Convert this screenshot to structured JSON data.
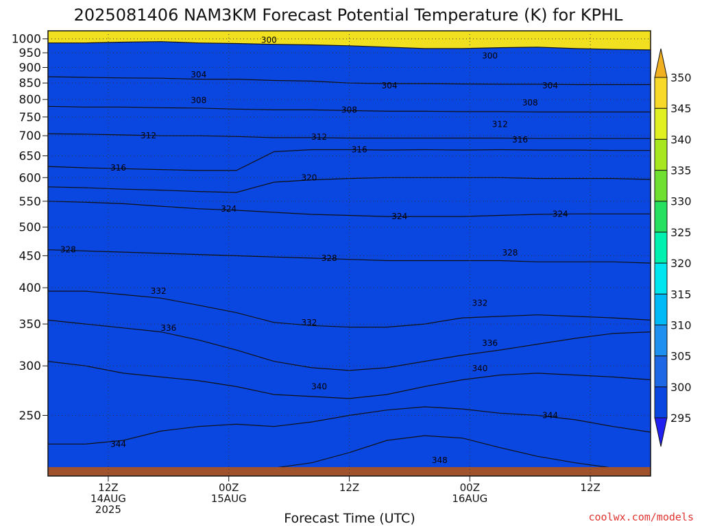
{
  "chart_data": {
    "type": "contour",
    "title": "2025081406 NAM3KM Forecast Potential Temperature (K) for KPHL",
    "xlabel": "Forecast Time (UTC)",
    "ylabel": "",
    "credit": "coolwx.com/models",
    "x_range_hours": [
      0,
      60
    ],
    "y_axis": {
      "scale": "log",
      "reversed": true,
      "range": [
        1030,
        200
      ],
      "ticks": [
        1000,
        950,
        900,
        850,
        800,
        750,
        700,
        650,
        600,
        550,
        500,
        450,
        400,
        350,
        300,
        250
      ],
      "tick_labels": [
        "1000",
        "950",
        "900",
        "850",
        "800",
        "750",
        "700",
        "650",
        "600",
        "550",
        "500",
        "450",
        "400",
        "350",
        "300",
        "250"
      ]
    },
    "x_ticks": [
      {
        "hour": 6,
        "lines": [
          "12Z",
          "14AUG",
          "2025"
        ]
      },
      {
        "hour": 18,
        "lines": [
          "00Z",
          "15AUG"
        ]
      },
      {
        "hour": 30,
        "lines": [
          "12Z"
        ]
      },
      {
        "hour": 42,
        "lines": [
          "00Z",
          "16AUG"
        ]
      },
      {
        "hour": 54,
        "lines": [
          "12Z"
        ]
      }
    ],
    "grid": true,
    "colorbar": {
      "levels": [
        295,
        300,
        305,
        310,
        315,
        320,
        325,
        330,
        335,
        340,
        345,
        350
      ],
      "labels": [
        "295",
        "300",
        "305",
        "310",
        "315",
        "320",
        "325",
        "330",
        "335",
        "340",
        "345",
        "350"
      ],
      "colors": [
        "#2020f0",
        "#0a46e0",
        "#1e68e6",
        "#1e90f0",
        "#00baf8",
        "#00e6f0",
        "#00f0b0",
        "#28e060",
        "#70e030",
        "#a8e620",
        "#e0f020",
        "#f8d828",
        "#f0b020"
      ],
      "extend": "both",
      "placement": "right"
    },
    "contours": [
      {
        "level": 300,
        "pressure": [
          985,
          985,
          988,
          990,
          985,
          983,
          980,
          978,
          975,
          970,
          965,
          965,
          968,
          970,
          965,
          962,
          960
        ]
      },
      {
        "level": 304,
        "pressure": [
          870,
          868,
          866,
          865,
          862,
          862,
          858,
          856,
          850,
          848,
          848,
          847,
          846,
          846,
          845,
          845,
          845
        ]
      },
      {
        "level": 308,
        "pressure": [
          780,
          778,
          778,
          776,
          775,
          772,
          770,
          770,
          768,
          766,
          766,
          765,
          765,
          764,
          764,
          764,
          764
        ]
      },
      {
        "level": 312,
        "pressure": [
          705,
          704,
          702,
          700,
          700,
          698,
          695,
          695,
          694,
          694,
          694,
          694,
          694,
          693,
          693,
          693,
          693
        ]
      },
      {
        "level": 316,
        "pressure": [
          625,
          622,
          620,
          618,
          616,
          616,
          660,
          665,
          665,
          664,
          665,
          664,
          665,
          664,
          664,
          663,
          663
        ]
      },
      {
        "level": 320,
        "pressure": [
          580,
          578,
          575,
          573,
          570,
          568,
          590,
          595,
          598,
          600,
          600,
          600,
          600,
          598,
          598,
          598,
          596
        ]
      },
      {
        "level": 324,
        "pressure": [
          550,
          548,
          545,
          540,
          535,
          532,
          528,
          524,
          522,
          520,
          520,
          520,
          522,
          524,
          525,
          525,
          525
        ]
      },
      {
        "level": 328,
        "pressure": [
          460,
          458,
          456,
          454,
          452,
          450,
          448,
          446,
          444,
          442,
          442,
          442,
          442,
          440,
          440,
          440,
          438
        ]
      },
      {
        "level": 332,
        "pressure": [
          395,
          395,
          390,
          385,
          375,
          365,
          352,
          348,
          346,
          346,
          350,
          358,
          360,
          362,
          360,
          358,
          355
        ]
      },
      {
        "level": 336,
        "pressure": [
          355,
          350,
          345,
          340,
          330,
          318,
          305,
          298,
          295,
          298,
          305,
          312,
          318,
          325,
          332,
          338,
          340
        ]
      },
      {
        "level": 340,
        "pressure": [
          305,
          300,
          292,
          288,
          284,
          278,
          270,
          268,
          266,
          270,
          278,
          285,
          290,
          292,
          290,
          288,
          285
        ]
      },
      {
        "level": 344,
        "pressure": [
          225,
          225,
          228,
          236,
          240,
          242,
          240,
          244,
          250,
          255,
          258,
          256,
          252,
          250,
          246,
          240,
          235
        ]
      },
      {
        "level": 348,
        "pressure": [
          205,
          205,
          206,
          206,
          205,
          204,
          206,
          210,
          218,
          228,
          232,
          230,
          222,
          215,
          210,
          206,
          205
        ]
      }
    ],
    "contour_labels": [
      {
        "text": "344",
        "hour": 7,
        "pressure": 225
      },
      {
        "text": "348",
        "hour": 39,
        "pressure": 212
      },
      {
        "text": "344",
        "hour": 50,
        "pressure": 250
      },
      {
        "text": "340",
        "hour": 27,
        "pressure": 278
      },
      {
        "text": "340",
        "hour": 43,
        "pressure": 297
      },
      {
        "text": "336",
        "hour": 44,
        "pressure": 326
      },
      {
        "text": "336",
        "hour": 12,
        "pressure": 345
      },
      {
        "text": "332",
        "hour": 26,
        "pressure": 352
      },
      {
        "text": "332",
        "hour": 43,
        "pressure": 378
      },
      {
        "text": "332",
        "hour": 11,
        "pressure": 395
      },
      {
        "text": "328",
        "hour": 2,
        "pressure": 460
      },
      {
        "text": "328",
        "hour": 28,
        "pressure": 446
      },
      {
        "text": "328",
        "hour": 46,
        "pressure": 455
      },
      {
        "text": "324",
        "hour": 35,
        "pressure": 520
      },
      {
        "text": "324",
        "hour": 51,
        "pressure": 525
      },
      {
        "text": "324",
        "hour": 18,
        "pressure": 535
      },
      {
        "text": "320",
        "hour": 26,
        "pressure": 600
      },
      {
        "text": "316",
        "hour": 7,
        "pressure": 622
      },
      {
        "text": "316",
        "hour": 31,
        "pressure": 665
      },
      {
        "text": "316",
        "hour": 47,
        "pressure": 690
      },
      {
        "text": "312",
        "hour": 10,
        "pressure": 700
      },
      {
        "text": "312",
        "hour": 27,
        "pressure": 697
      },
      {
        "text": "312",
        "hour": 45,
        "pressure": 730
      },
      {
        "text": "308",
        "hour": 30,
        "pressure": 770
      },
      {
        "text": "308",
        "hour": 48,
        "pressure": 790
      },
      {
        "text": "308",
        "hour": 15,
        "pressure": 797
      },
      {
        "text": "304",
        "hour": 34,
        "pressure": 842
      },
      {
        "text": "304",
        "hour": 50,
        "pressure": 842
      },
      {
        "text": "304",
        "hour": 15,
        "pressure": 877
      },
      {
        "text": "300",
        "hour": 44,
        "pressure": 940
      },
      {
        "text": "300",
        "hour": 22,
        "pressure": 995
      }
    ]
  }
}
